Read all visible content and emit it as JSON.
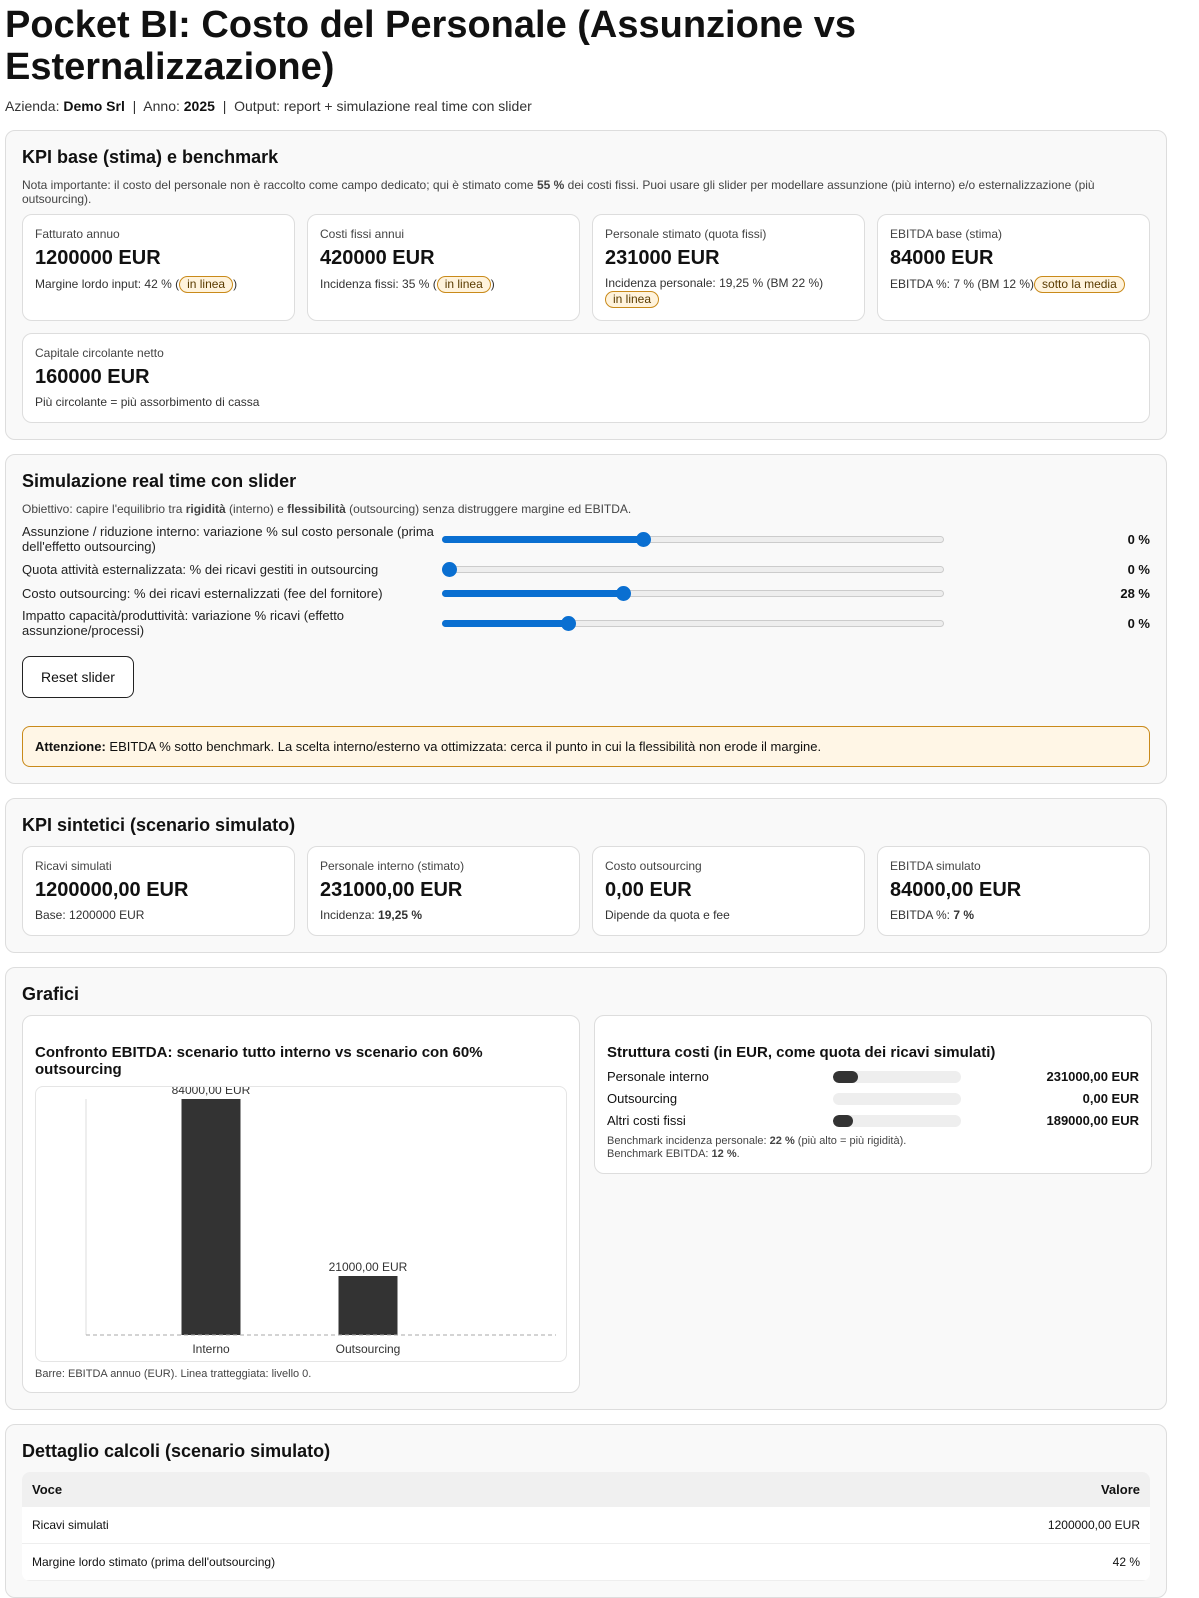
{
  "title": "Pocket BI: Costo del Personale (Assunzione vs Esternalizzazione)",
  "meta": {
    "azienda_label": "Azienda:",
    "azienda": "Demo Srl",
    "anno_label": "Anno:",
    "anno": "2025",
    "output": "Output: report + simulazione real time con slider"
  },
  "kpi_base": {
    "title": "KPI base (stima) e benchmark",
    "note_pre": "Nota importante: il costo del personale non è raccolto come campo dedicato; qui è stimato come ",
    "note_bold": "55 %",
    "note_post": " dei costi fissi. Puoi usare gli slider per modellare assunzione (più interno) e/o esternalizzazione (più outsourcing).",
    "cards": [
      {
        "label": "Fatturato annuo",
        "value": "1200000 EUR",
        "sub": "Margine lordo input: 42 % (",
        "badge": "in linea",
        "sub_end": ")"
      },
      {
        "label": "Costi fissi annui",
        "value": "420000 EUR",
        "sub": "Incidenza fissi: 35 % (",
        "badge": "in linea",
        "sub_end": ")"
      },
      {
        "label": "Personale stimato (quota fissi)",
        "value": "231000 EUR",
        "sub": "Incidenza personale: 19,25 % (BM 22 %)",
        "badge": "in linea",
        "sub_end": ""
      },
      {
        "label": "EBITDA base (stima)",
        "value": "84000 EUR",
        "sub": "EBITDA %: 7 % (BM 12 %)",
        "badge": "sotto la media",
        "sub_end": ""
      }
    ],
    "ccn": {
      "label": "Capitale circolante netto",
      "value": "160000 EUR",
      "sub": "Più circolante = più assorbimento di cassa"
    }
  },
  "sim": {
    "title": "Simulazione real time con slider",
    "obj_pre": "Obiettivo: capire l'equilibrio tra ",
    "obj_b1": "rigidità",
    "obj_mid": " (interno) e ",
    "obj_b2": "flessibilità",
    "obj_post": " (outsourcing) senza distruggere margine ed EBITDA.",
    "sliders": [
      {
        "label": "Assunzione / riduzione interno: variazione % sul costo personale (prima dell'effetto outsourcing)",
        "value": "0 %",
        "position": 0.4
      },
      {
        "label": "Quota attività esternalizzata: % dei ricavi gestiti in outsourcing",
        "value": "0 %",
        "position": 0.0
      },
      {
        "label": "Costo outsourcing: % dei ricavi esternalizzati (fee del fornitore)",
        "value": "28 %",
        "position": 0.36
      },
      {
        "label": "Impatto capacità/produttività: variazione % ricavi (effetto assunzione/processi)",
        "value": "0 %",
        "position": 0.25
      }
    ],
    "reset": "Reset slider",
    "warn_bold": "Attenzione:",
    "warn": " EBITDA % sotto benchmark. La scelta interno/esterno va ottimizzata: cerca il punto in cui la flessibilità non erode il margine."
  },
  "kpi_sim": {
    "title": "KPI sintetici (scenario simulato)",
    "cards": [
      {
        "label": "Ricavi simulati",
        "value": "1200000,00 EUR",
        "sub": "Base: 1200000 EUR",
        "sub_bold": ""
      },
      {
        "label": "Personale interno (stimato)",
        "value": "231000,00 EUR",
        "sub": "Incidenza: ",
        "sub_bold": "19,25 %"
      },
      {
        "label": "Costo outsourcing",
        "value": "0,00 EUR",
        "sub": "Dipende da quota e fee",
        "sub_bold": ""
      },
      {
        "label": "EBITDA simulato",
        "value": "84000,00 EUR",
        "sub": "EBITDA %: ",
        "sub_bold": "7 %"
      }
    ]
  },
  "grafici": {
    "title": "Grafici",
    "chart_data": {
      "type": "bar",
      "title": "Confronto EBITDA: scenario tutto interno vs scenario con 60% outsourcing",
      "categories": [
        "Interno",
        "Outsourcing"
      ],
      "values": [
        84000,
        21000
      ],
      "data_labels": [
        "84000,00 EUR",
        "21000,00 EUR"
      ],
      "ylim": [
        0,
        84000
      ],
      "bar_color": "#333333",
      "zero_line": "dashed",
      "caption": "Barre: EBITDA annuo (EUR). Linea tratteggiata: livello 0."
    },
    "struttura": {
      "title": "Struttura costi (in EUR, come quota dei ricavi simulati)",
      "rows": [
        {
          "label": "Personale interno",
          "value": "231000,00 EUR",
          "share": 0.1925
        },
        {
          "label": "Outsourcing",
          "value": "0,00 EUR",
          "share": 0
        },
        {
          "label": "Altri costi fissi",
          "value": "189000,00 EUR",
          "share": 0.1575
        }
      ],
      "bm1_pre": "Benchmark incidenza personale: ",
      "bm1_b": "22 %",
      "bm1_post": " (più alto = più rigidità).",
      "bm2_pre": "Benchmark EBITDA: ",
      "bm2_b": "12 %",
      "bm2_post": "."
    }
  },
  "dettaglio": {
    "title": "Dettaglio calcoli (scenario simulato)",
    "headers": [
      "Voce",
      "Valore"
    ],
    "rows": [
      [
        "Ricavi simulati",
        "1200000,00 EUR"
      ],
      [
        "Margine lordo stimato (prima dell'outsourcing)",
        "42 %"
      ]
    ]
  },
  "colors": {
    "accent": "#0a6fd1",
    "warn_border": "#c98a1a",
    "bar": "#333333"
  }
}
